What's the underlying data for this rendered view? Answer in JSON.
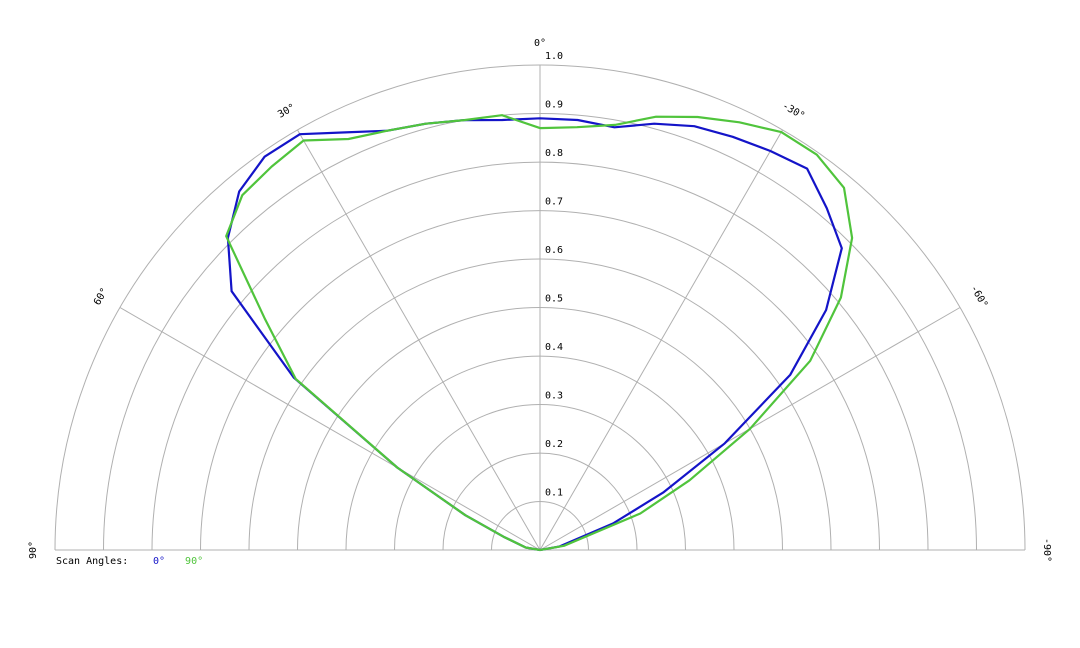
{
  "chart_data": {
    "type": "polar",
    "theta": [
      -90,
      -80,
      -70,
      -65,
      -60,
      -55,
      -50,
      -45,
      -40,
      -35,
      -30,
      -25,
      -20,
      -15,
      -10,
      -5,
      0,
      5,
      10,
      15,
      20,
      25,
      30,
      35,
      40,
      45,
      50,
      55,
      60,
      65,
      70,
      80,
      90
    ],
    "series": [
      {
        "name": "0°",
        "color": "#1414c8",
        "values": [
          0,
          0.04,
          0.16,
          0.28,
          0.44,
          0.63,
          0.77,
          0.88,
          0.92,
          0.96,
          0.95,
          0.94,
          0.93,
          0.91,
          0.885,
          0.89,
          0.89,
          0.89,
          0.9,
          0.91,
          0.92,
          0.95,
          0.99,
          0.99,
          0.965,
          0.91,
          0.83,
          0.62,
          0.34,
          0.17,
          0.08,
          0.03,
          0
        ]
      },
      {
        "name": "90°",
        "color": "#50c43c",
        "values": [
          0,
          0.05,
          0.22,
          0.34,
          0.5,
          0.68,
          0.81,
          0.91,
          0.975,
          0.995,
          0.995,
          0.973,
          0.95,
          0.925,
          0.89,
          0.875,
          0.87,
          0.9,
          0.9,
          0.91,
          0.92,
          0.935,
          0.975,
          0.965,
          0.955,
          0.915,
          0.74,
          0.615,
          0.34,
          0.17,
          0.08,
          0.03,
          0
        ]
      }
    ],
    "legend_title": "Scan Angles:",
    "rlim": [
      0,
      1
    ],
    "rticks": [
      0.1,
      0.2,
      0.3,
      0.4,
      0.5,
      0.6,
      0.7,
      0.8,
      0.9,
      {
        "value": 1,
        "label": "1.0"
      }
    ],
    "thetaticks": [
      {
        "value": 90,
        "label": "90°"
      },
      {
        "value": 60,
        "label": "60°"
      },
      {
        "value": 30,
        "label": "30°"
      },
      {
        "value": 0,
        "label": "0°"
      },
      {
        "value": -30,
        "label": "-30°"
      },
      {
        "value": -60,
        "label": "-60°"
      },
      {
        "value": -90,
        "label": "-90°"
      }
    ]
  }
}
